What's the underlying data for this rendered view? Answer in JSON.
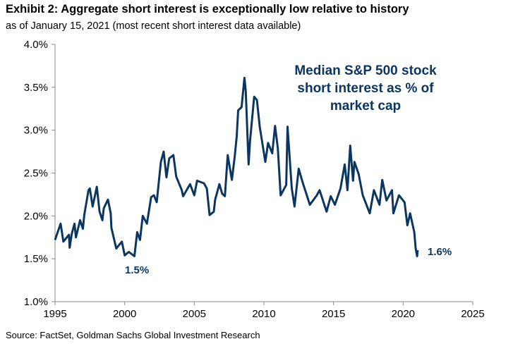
{
  "chart_data": {
    "type": "line",
    "title": "Exhibit 2: Aggregate short interest is exceptionally low relative to history",
    "subtitle": "as of January 15, 2021 (most recent short interest data available)",
    "source": "Source: FactSet, Goldman Sachs Global Investment Research",
    "xlim": [
      1995,
      2025
    ],
    "ylim": [
      1.0,
      4.0
    ],
    "x_ticks": [
      "1995",
      "2000",
      "2005",
      "2010",
      "2015",
      "2020",
      "2025"
    ],
    "y_ticks": [
      "1.0%",
      "1.5%",
      "2.0%",
      "2.5%",
      "3.0%",
      "3.5%",
      "4.0%"
    ],
    "grid": false,
    "line_color": "#0c3662",
    "series": [
      {
        "name": "Median S&P 500 stock short interest as % of market cap",
        "x": [
          1995.0,
          1995.4,
          1995.6,
          1996.0,
          1996.05,
          1996.2,
          1996.4,
          1996.5,
          1996.8,
          1997.0,
          1997.1,
          1997.4,
          1997.5,
          1997.7,
          1998.0,
          1998.2,
          1998.4,
          1998.5,
          1998.8,
          1999.0,
          1999.05,
          1999.4,
          1999.8,
          2000.0,
          2000.3,
          2000.7,
          2000.9,
          2001.1,
          2001.3,
          2001.6,
          2001.9,
          2002.1,
          2002.3,
          2002.6,
          2002.8,
          2003.0,
          2003.2,
          2003.5,
          2003.7,
          2004.1,
          2004.2,
          2004.7,
          2005.0,
          2005.2,
          2005.7,
          2005.9,
          2006.1,
          2006.4,
          2006.5,
          2006.8,
          2007.0,
          2007.2,
          2007.4,
          2007.7,
          2007.9,
          2008.05,
          2008.15,
          2008.4,
          2008.6,
          2008.7,
          2008.9,
          2009.0,
          2009.3,
          2009.5,
          2009.7,
          2010.1,
          2010.3,
          2010.6,
          2010.8,
          2011.0,
          2011.2,
          2011.6,
          2011.7,
          2012.0,
          2012.2,
          2012.5,
          2012.8,
          2013.3,
          2013.8,
          2014.0,
          2014.5,
          2014.8,
          2015.1,
          2015.5,
          2015.8,
          2016.0,
          2016.2,
          2016.4,
          2016.5,
          2016.8,
          2017.1,
          2017.6,
          2017.9,
          2018.3,
          2018.5,
          2018.8,
          2019.2,
          2019.3,
          2019.7,
          2020.1,
          2020.3,
          2020.5,
          2020.8,
          2020.9,
          2021.0,
          2021.04
        ],
        "values": [
          1.72,
          1.91,
          1.7,
          1.78,
          1.63,
          1.79,
          1.91,
          1.75,
          1.95,
          1.85,
          2.01,
          2.3,
          2.32,
          2.11,
          2.34,
          2.05,
          1.95,
          2.09,
          2.19,
          2.03,
          1.86,
          1.62,
          1.7,
          1.54,
          1.58,
          1.53,
          1.81,
          1.72,
          2.0,
          1.91,
          2.22,
          2.24,
          2.16,
          2.63,
          2.75,
          2.45,
          2.67,
          2.71,
          2.46,
          2.3,
          2.23,
          2.37,
          2.24,
          2.41,
          2.38,
          2.32,
          2.01,
          2.05,
          2.19,
          2.37,
          2.26,
          2.23,
          2.71,
          2.42,
          2.69,
          2.93,
          3.23,
          3.27,
          3.61,
          3.45,
          2.6,
          2.87,
          3.39,
          3.35,
          3.04,
          2.63,
          2.85,
          2.73,
          3.05,
          2.79,
          2.24,
          2.36,
          3.04,
          2.32,
          2.11,
          2.55,
          2.38,
          2.13,
          2.24,
          2.3,
          2.05,
          2.23,
          2.13,
          2.32,
          2.6,
          2.3,
          2.82,
          2.41,
          2.63,
          2.49,
          2.24,
          2.03,
          2.3,
          2.13,
          2.42,
          2.18,
          2.3,
          2.03,
          2.24,
          2.16,
          1.89,
          2.03,
          1.81,
          1.62,
          1.53,
          1.6
        ]
      }
    ],
    "annotations": {
      "label_lines": [
        "Median S&P 500 stock",
        "short interest as % of",
        "market cap"
      ],
      "low_2000": "1.5%",
      "latest": "1.6%"
    }
  }
}
